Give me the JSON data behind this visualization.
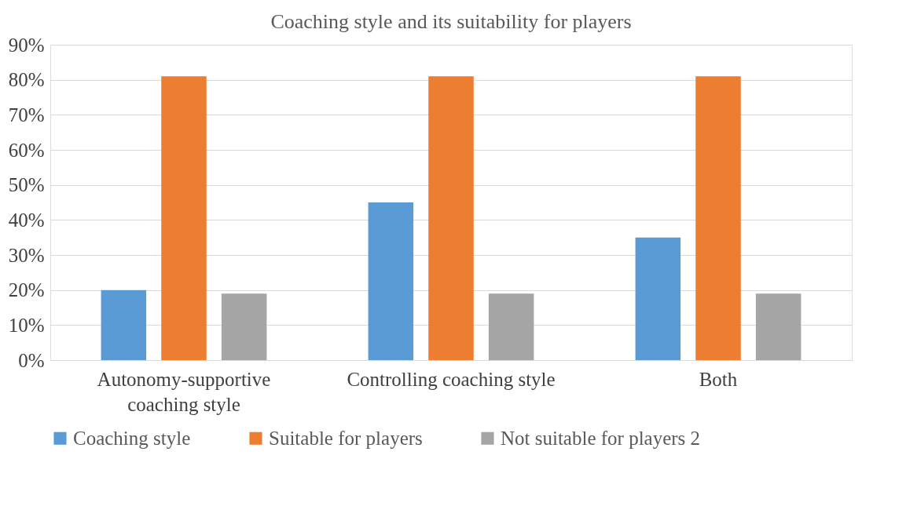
{
  "chart_data": {
    "type": "bar",
    "title": "Coaching style and its suitability for players",
    "categories": [
      "Autonomy-supportive coaching style",
      "Controlling coaching style",
      "Both"
    ],
    "series": [
      {
        "name": "Coaching style",
        "color": "#5b9bd5",
        "values": [
          20,
          45,
          35
        ]
      },
      {
        "name": "Suitable for players",
        "color": "#ed7d31",
        "values": [
          81,
          81,
          81
        ]
      },
      {
        "name": "Not suitable for players 2",
        "color": "#a5a5a5",
        "values": [
          19,
          19,
          19
        ]
      }
    ],
    "ylim": [
      0,
      90
    ],
    "yticks": [
      {
        "value": 0,
        "label": "0%"
      },
      {
        "value": 10,
        "label": "10%"
      },
      {
        "value": 20,
        "label": "20%"
      },
      {
        "value": 30,
        "label": "30%"
      },
      {
        "value": 40,
        "label": "40%"
      },
      {
        "value": 50,
        "label": "50%"
      },
      {
        "value": 60,
        "label": "60%"
      },
      {
        "value": 70,
        "label": "70%"
      },
      {
        "value": 80,
        "label": "80%"
      },
      {
        "value": 90,
        "label": "90%"
      }
    ],
    "grid": "y",
    "legend": "bottom"
  }
}
